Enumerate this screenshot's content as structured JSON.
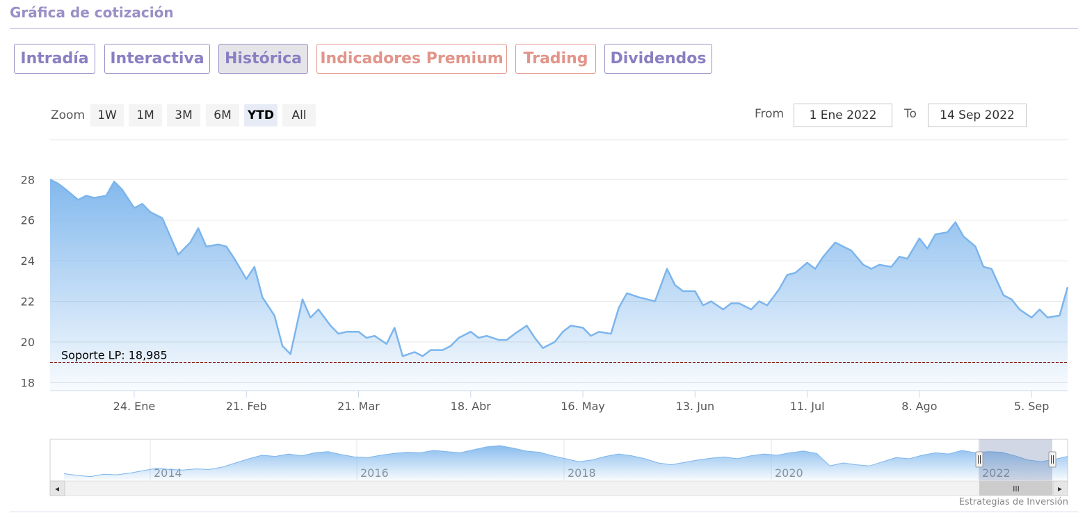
{
  "section_title": "Gráfica de cotización",
  "tabs": [
    {
      "label": "Intradía",
      "premium": false,
      "active": false
    },
    {
      "label": "Interactiva",
      "premium": false,
      "active": false
    },
    {
      "label": "Histórica",
      "premium": false,
      "active": true
    },
    {
      "label": "Indicadores Premium",
      "premium": true,
      "active": false
    },
    {
      "label": "Trading",
      "premium": true,
      "active": false
    },
    {
      "label": "Dividendos",
      "premium": false,
      "active": false
    }
  ],
  "range_selector": {
    "zoom_label": "Zoom",
    "buttons": [
      "1W",
      "1M",
      "3M",
      "6M",
      "YTD",
      "All"
    ],
    "selected": "YTD",
    "from_label": "From",
    "from_value": "1 Ene 2022",
    "to_label": "To",
    "to_value": "14 Sep 2022"
  },
  "colors": {
    "series_line": "#7cb5ec",
    "tab_accent": "#9a8fc6",
    "premium_accent": "#e2958a",
    "support_line": "#8b1a1a"
  },
  "chart_data": {
    "type": "area",
    "title": "",
    "xlabel": "",
    "ylabel": "",
    "ylim": [
      18,
      28
    ],
    "xlim": [
      "2022-01-03",
      "2022-09-14"
    ],
    "yticks": [
      18,
      20,
      22,
      24,
      26,
      28
    ],
    "xticks": [
      {
        "label": "24. Ene",
        "date": "2022-01-24"
      },
      {
        "label": "21. Feb",
        "date": "2022-02-21"
      },
      {
        "label": "21. Mar",
        "date": "2022-03-21"
      },
      {
        "label": "18. Abr",
        "date": "2022-04-18"
      },
      {
        "label": "16. May",
        "date": "2022-05-16"
      },
      {
        "label": "13. Jun",
        "date": "2022-06-13"
      },
      {
        "label": "11. Jul",
        "date": "2022-07-11"
      },
      {
        "label": "8. Ago",
        "date": "2022-08-08"
      },
      {
        "label": "5. Sep",
        "date": "2022-09-05"
      }
    ],
    "grid": true,
    "legend": "none",
    "annotation": {
      "label": "Soporte LP: 18,985",
      "value": 18.985,
      "style": "dashed"
    },
    "x": [
      "2022-01-03",
      "2022-01-05",
      "2022-01-07",
      "2022-01-10",
      "2022-01-12",
      "2022-01-14",
      "2022-01-17",
      "2022-01-19",
      "2022-01-21",
      "2022-01-24",
      "2022-01-26",
      "2022-01-28",
      "2022-01-31",
      "2022-02-02",
      "2022-02-04",
      "2022-02-07",
      "2022-02-09",
      "2022-02-11",
      "2022-02-14",
      "2022-02-16",
      "2022-02-18",
      "2022-02-21",
      "2022-02-23",
      "2022-02-25",
      "2022-02-28",
      "2022-03-02",
      "2022-03-04",
      "2022-03-07",
      "2022-03-09",
      "2022-03-11",
      "2022-03-14",
      "2022-03-16",
      "2022-03-18",
      "2022-03-21",
      "2022-03-23",
      "2022-03-25",
      "2022-03-28",
      "2022-03-30",
      "2022-04-01",
      "2022-04-04",
      "2022-04-06",
      "2022-04-08",
      "2022-04-11",
      "2022-04-13",
      "2022-04-15",
      "2022-04-18",
      "2022-04-20",
      "2022-04-22",
      "2022-04-25",
      "2022-04-27",
      "2022-04-29",
      "2022-05-02",
      "2022-05-04",
      "2022-05-06",
      "2022-05-09",
      "2022-05-11",
      "2022-05-13",
      "2022-05-16",
      "2022-05-18",
      "2022-05-20",
      "2022-05-23",
      "2022-05-25",
      "2022-05-27",
      "2022-05-30",
      "2022-06-01",
      "2022-06-03",
      "2022-06-06",
      "2022-06-08",
      "2022-06-10",
      "2022-06-13",
      "2022-06-15",
      "2022-06-17",
      "2022-06-20",
      "2022-06-22",
      "2022-06-24",
      "2022-06-27",
      "2022-06-29",
      "2022-07-01",
      "2022-07-04",
      "2022-07-06",
      "2022-07-08",
      "2022-07-11",
      "2022-07-13",
      "2022-07-15",
      "2022-07-18",
      "2022-07-20",
      "2022-07-22",
      "2022-07-25",
      "2022-07-27",
      "2022-07-29",
      "2022-08-01",
      "2022-08-03",
      "2022-08-05",
      "2022-08-08",
      "2022-08-10",
      "2022-08-12",
      "2022-08-15",
      "2022-08-17",
      "2022-08-19",
      "2022-08-22",
      "2022-08-24",
      "2022-08-26",
      "2022-08-29",
      "2022-08-31",
      "2022-09-02",
      "2022-09-05",
      "2022-09-07",
      "2022-09-09",
      "2022-09-12",
      "2022-09-14"
    ],
    "values": [
      28.0,
      27.8,
      27.5,
      27.0,
      27.2,
      27.1,
      27.2,
      27.9,
      27.5,
      26.6,
      26.8,
      26.4,
      26.1,
      25.2,
      24.3,
      24.9,
      25.6,
      24.7,
      24.8,
      24.7,
      24.1,
      23.1,
      23.7,
      22.2,
      21.3,
      19.8,
      19.4,
      22.1,
      21.2,
      21.6,
      20.8,
      20.4,
      20.5,
      20.5,
      20.2,
      20.3,
      19.9,
      20.7,
      19.3,
      19.5,
      19.3,
      19.6,
      19.6,
      19.8,
      20.2,
      20.5,
      20.2,
      20.3,
      20.1,
      20.1,
      20.4,
      20.8,
      20.2,
      19.7,
      20.0,
      20.5,
      20.8,
      20.7,
      20.3,
      20.5,
      20.4,
      21.7,
      22.4,
      22.2,
      22.1,
      22.0,
      23.6,
      22.8,
      22.5,
      22.5,
      21.8,
      22.0,
      21.6,
      21.9,
      21.9,
      21.6,
      22.0,
      21.8,
      22.6,
      23.3,
      23.4,
      23.9,
      23.6,
      24.2,
      24.9,
      24.7,
      24.5,
      23.8,
      23.6,
      23.8,
      23.7,
      24.2,
      24.1,
      25.1,
      24.6,
      25.3,
      25.4,
      25.9,
      25.2,
      24.7,
      23.7,
      23.6,
      22.3,
      22.1,
      21.6,
      21.2,
      21.6,
      21.2,
      21.3,
      22.7
    ]
  },
  "navigator": {
    "years": [
      "2014",
      "2016",
      "2018",
      "2020",
      "2022"
    ],
    "values": [
      19.5,
      19.2,
      19.0,
      19.4,
      19.3,
      19.6,
      20.0,
      20.4,
      20.2,
      20.1,
      20.3,
      20.2,
      20.6,
      21.3,
      22.0,
      22.6,
      22.4,
      22.8,
      22.5,
      23.0,
      23.2,
      22.7,
      22.3,
      22.2,
      22.6,
      22.9,
      23.1,
      23.0,
      23.4,
      23.2,
      23.0,
      23.5,
      24.0,
      24.2,
      23.8,
      23.3,
      23.1,
      22.5,
      22.0,
      21.5,
      21.8,
      22.4,
      22.8,
      22.5,
      22.0,
      21.3,
      21.0,
      21.4,
      21.8,
      22.1,
      22.3,
      22.0,
      22.5,
      22.8,
      22.6,
      23.0,
      23.3,
      22.9,
      20.8,
      21.3,
      21.0,
      20.8,
      21.5,
      22.2,
      22.0,
      22.6,
      23.0,
      22.8,
      23.4,
      23.0,
      23.2,
      23.1,
      22.5,
      21.8,
      21.5,
      21.9,
      22.4
    ]
  },
  "scrollbar": {
    "left_arrow": "◂",
    "right_arrow": "▸",
    "grip": "III"
  },
  "credits": "Estrategias de Inversión"
}
